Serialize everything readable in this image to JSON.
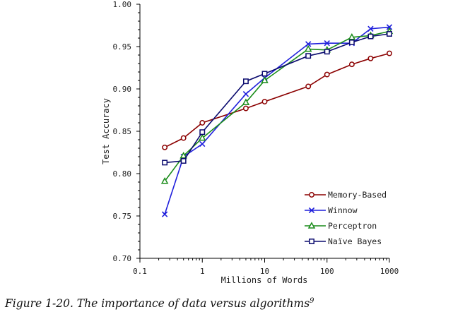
{
  "chart_data": {
    "type": "line",
    "xscale": "log",
    "xlabel": "Millions of Words",
    "ylabel": "Test Accuracy",
    "xlim": [
      0.1,
      1000
    ],
    "ylim": [
      0.7,
      1.0
    ],
    "xticks": [
      0.1,
      1,
      10,
      100,
      1000
    ],
    "xtick_labels": [
      "0.1",
      "1",
      "10",
      "100",
      "1000"
    ],
    "yticks": [
      0.7,
      0.75,
      0.8,
      0.85,
      0.9,
      0.95,
      1.0
    ],
    "ytick_labels": [
      "0.70",
      "0.75",
      "0.80",
      "0.85",
      "0.90",
      "0.95",
      "1.00"
    ],
    "grid": false,
    "legend_position": "bottom-right",
    "x": [
      0.25,
      0.5,
      1,
      5,
      10,
      50,
      100,
      250,
      500,
      1000
    ],
    "series": [
      {
        "name": "Memory-Based",
        "color": "#8b0000",
        "marker": "circle",
        "values": [
          0.831,
          0.842,
          0.86,
          0.877,
          0.885,
          0.903,
          0.917,
          0.929,
          0.936,
          0.942
        ]
      },
      {
        "name": "Winnow",
        "color": "#1f1fdc",
        "marker": "x",
        "values": [
          0.752,
          0.82,
          0.835,
          0.894,
          0.913,
          0.953,
          0.954,
          0.954,
          0.971,
          0.973
        ]
      },
      {
        "name": "Perceptron",
        "color": "#1a8c1a",
        "marker": "triangle",
        "values": [
          0.791,
          0.821,
          0.842,
          0.884,
          0.91,
          0.947,
          0.946,
          0.961,
          0.963,
          0.968
        ]
      },
      {
        "name": "Naïve Bayes",
        "color": "#0a0a6e",
        "marker": "square",
        "values": [
          0.813,
          0.815,
          0.849,
          0.909,
          0.918,
          0.939,
          0.944,
          0.955,
          0.962,
          0.965
        ]
      }
    ]
  },
  "caption": {
    "text": "Figure 1-20. The importance of data versus algorithms",
    "footnote": "9"
  }
}
